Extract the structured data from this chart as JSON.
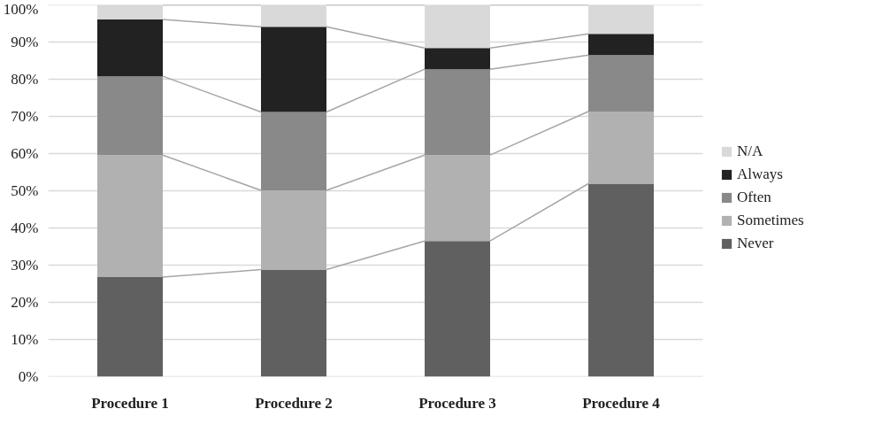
{
  "chart_data": {
    "type": "bar",
    "stacked": true,
    "categories": [
      "Procedure 1",
      "Procedure 2",
      "Procedure 3",
      "Procedure 4"
    ],
    "series": [
      {
        "name": "Never",
        "color": "#606060",
        "values": [
          26.8,
          28.8,
          36.5,
          51.9
        ]
      },
      {
        "name": "Sometimes",
        "color": "#b1b1b1",
        "values": [
          32.8,
          21.3,
          23.1,
          19.4
        ]
      },
      {
        "name": "Often",
        "color": "#898989",
        "values": [
          21.2,
          21.1,
          23.1,
          15.2
        ]
      },
      {
        "name": "Always",
        "color": "#222222",
        "values": [
          15.3,
          22.9,
          5.7,
          5.7
        ]
      },
      {
        "name": "N/A",
        "color": "#d9d9d9",
        "values": [
          3.9,
          5.9,
          11.6,
          7.8
        ]
      }
    ],
    "ylim": [
      0,
      100
    ],
    "yticks": [
      {
        "value": 0,
        "label": "0%"
      },
      {
        "value": 10,
        "label": "10%"
      },
      {
        "value": 20,
        "label": "20%"
      },
      {
        "value": 30,
        "label": "30%"
      },
      {
        "value": 40,
        "label": "40%"
      },
      {
        "value": 50,
        "label": "50%"
      },
      {
        "value": 60,
        "label": "60%"
      },
      {
        "value": 70,
        "label": "70%"
      },
      {
        "value": 80,
        "label": "80%"
      },
      {
        "value": 90,
        "label": "90%"
      },
      {
        "value": 100,
        "label": "100%"
      }
    ],
    "grid": "y",
    "legend": "right"
  }
}
